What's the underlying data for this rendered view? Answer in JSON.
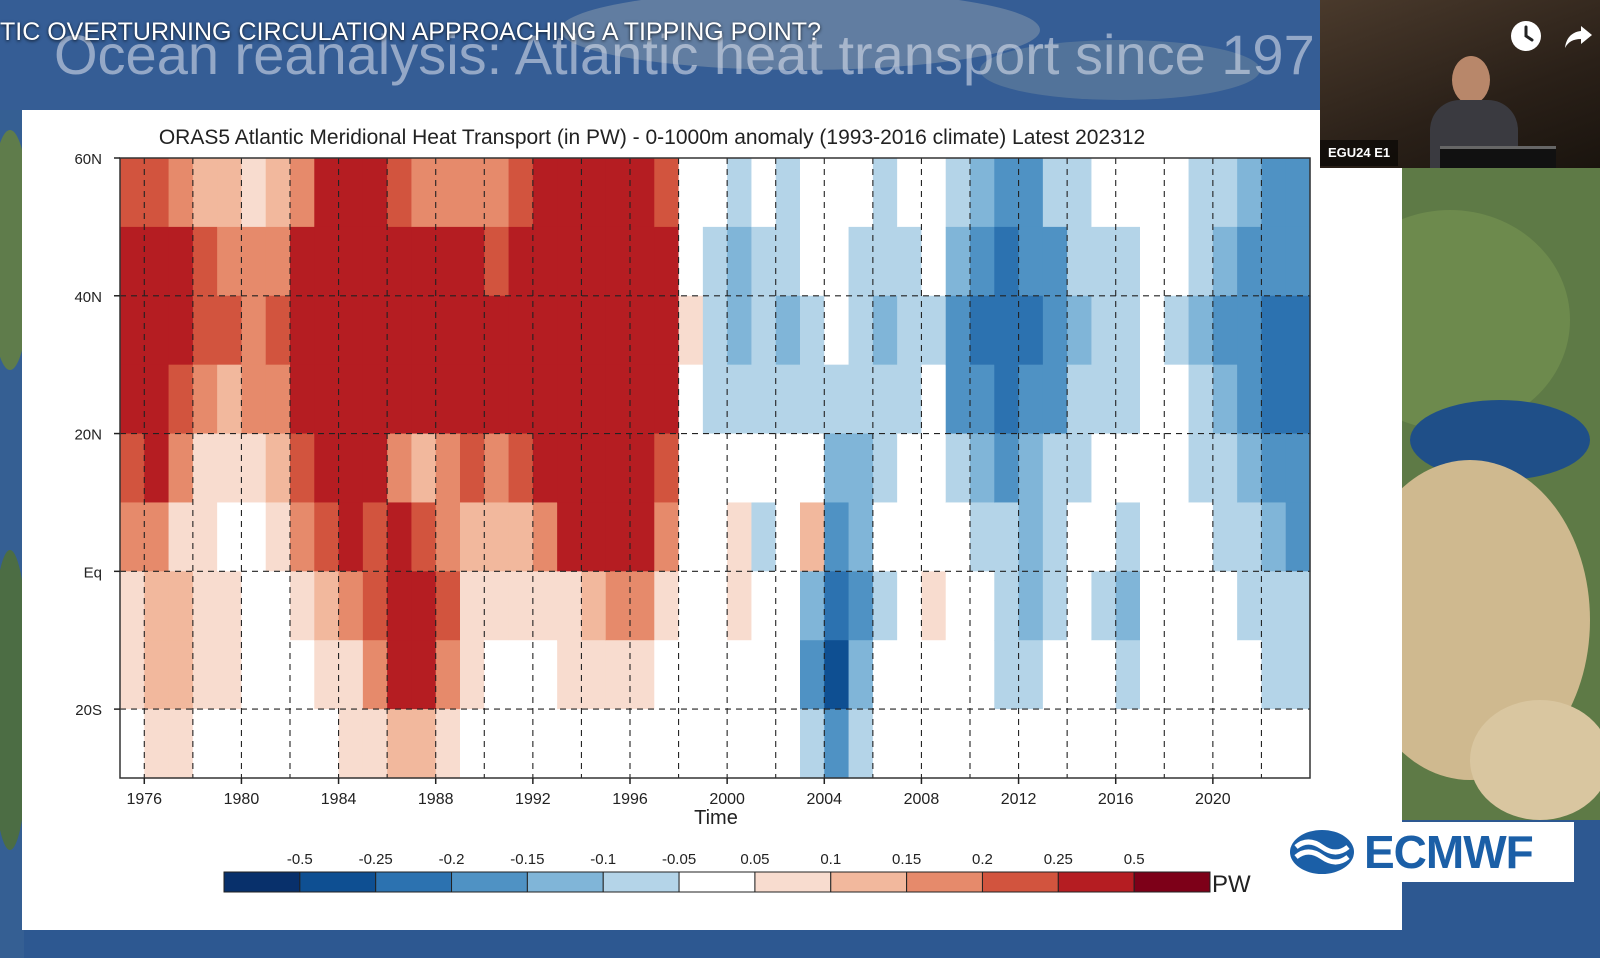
{
  "video": {
    "title": "TIC OVERTURNING CIRCULATION APPROACHING A TIPPING POINT?",
    "watch_later_icon": "clock-icon",
    "share_icon": "share-arrow-icon"
  },
  "slide": {
    "heading": "Ocean reanalysis: Atlantic heat transport since 197"
  },
  "webcam": {
    "label": "EGU24 E1"
  },
  "logo": {
    "text": "ECMWF",
    "icon": "ecmwf-wave-icon",
    "color": "#1b5fa7"
  },
  "colors": {
    "neg": [
      "#08306b",
      "#0e4f92",
      "#2c72b0",
      "#4f92c4",
      "#80b5d8",
      "#b4d4e8",
      "#dceaf3"
    ],
    "pos": [
      "#f8dccf",
      "#f2b89d",
      "#e68a6b",
      "#d2543e",
      "#b51d22",
      "#7d0018"
    ],
    "neutral": "#ffffff"
  },
  "chart_data": {
    "type": "heatmap",
    "title": "ORAS5 Atlantic Meridional Heat Transport (in PW) - 0-1000m anomaly (1993-2016 climate) Latest 202312",
    "xlabel": "Time",
    "ylabel": "",
    "xlim": [
      1975,
      2024
    ],
    "ylim": [
      -30,
      60
    ],
    "x_ticks": [
      1976,
      1980,
      1984,
      1988,
      1992,
      1996,
      2000,
      2004,
      2008,
      2012,
      2016,
      2020
    ],
    "y_ticks": [
      {
        "value": 60,
        "label": "60N"
      },
      {
        "value": 40,
        "label": "40N"
      },
      {
        "value": 20,
        "label": "20N"
      },
      {
        "value": 0,
        "label": "Eq"
      },
      {
        "value": -20,
        "label": "20S"
      }
    ],
    "grid": true,
    "colorbar": {
      "unit": "PW",
      "labels": [
        "-0.5",
        "-0.25",
        "-0.2",
        "-0.15",
        "-0.1",
        "-0.05",
        "0.05",
        "0.1",
        "0.15",
        "0.2",
        "0.25",
        "0.5"
      ],
      "boundaries": [
        -0.5,
        -0.25,
        -0.2,
        -0.15,
        -0.1,
        -0.05,
        0.05,
        0.1,
        0.15,
        0.2,
        0.25,
        0.5
      ]
    },
    "lat_levels": [
      55,
      45,
      35,
      25,
      15,
      5,
      -5,
      -15,
      -25
    ],
    "year_series": [
      {
        "year": 1975,
        "values": [
          0.22,
          0.3,
          0.32,
          0.3,
          0.25,
          0.18,
          0.1,
          0.08,
          0.05
        ]
      },
      {
        "year": 1976,
        "values": [
          0.25,
          0.32,
          0.35,
          0.33,
          0.28,
          0.2,
          0.15,
          0.12,
          0.08
        ]
      },
      {
        "year": 1977,
        "values": [
          0.18,
          0.26,
          0.28,
          0.22,
          0.16,
          0.1,
          0.12,
          0.15,
          0.1
        ]
      },
      {
        "year": 1978,
        "values": [
          0.15,
          0.22,
          0.24,
          0.18,
          0.1,
          0.06,
          0.08,
          0.1,
          0.05
        ]
      },
      {
        "year": 1979,
        "values": [
          0.12,
          0.2,
          0.22,
          0.15,
          0.08,
          0.04,
          0.06,
          0.08,
          0.04
        ]
      },
      {
        "year": 1980,
        "values": [
          0.1,
          0.18,
          0.2,
          0.16,
          0.1,
          0.05,
          0.04,
          0.04,
          0.02
        ]
      },
      {
        "year": 1981,
        "values": [
          0.12,
          0.2,
          0.22,
          0.2,
          0.14,
          0.08,
          0.03,
          0.02,
          0.02
        ]
      },
      {
        "year": 1982,
        "values": [
          0.2,
          0.28,
          0.3,
          0.28,
          0.24,
          0.18,
          0.08,
          0.05,
          0.03
        ]
      },
      {
        "year": 1983,
        "values": [
          0.3,
          0.34,
          0.32,
          0.3,
          0.28,
          0.24,
          0.12,
          0.08,
          0.04
        ]
      },
      {
        "year": 1984,
        "values": [
          0.34,
          0.36,
          0.34,
          0.32,
          0.3,
          0.26,
          0.16,
          0.1,
          0.06
        ]
      },
      {
        "year": 1985,
        "values": [
          0.3,
          0.34,
          0.33,
          0.3,
          0.27,
          0.25,
          0.22,
          0.16,
          0.1
        ]
      },
      {
        "year": 1986,
        "values": [
          0.22,
          0.3,
          0.32,
          0.3,
          0.2,
          0.26,
          0.3,
          0.26,
          0.14
        ]
      },
      {
        "year": 1987,
        "values": [
          0.18,
          0.28,
          0.3,
          0.28,
          0.14,
          0.24,
          0.32,
          0.28,
          0.14
        ]
      },
      {
        "year": 1988,
        "values": [
          0.2,
          0.3,
          0.32,
          0.3,
          0.2,
          0.2,
          0.22,
          0.16,
          0.08
        ]
      },
      {
        "year": 1989,
        "values": [
          0.18,
          0.28,
          0.3,
          0.28,
          0.22,
          0.15,
          0.1,
          0.06,
          0.04
        ]
      },
      {
        "year": 1990,
        "values": [
          0.16,
          0.25,
          0.28,
          0.26,
          0.2,
          0.12,
          0.06,
          0.04,
          0.02
        ]
      },
      {
        "year": 1991,
        "values": [
          0.22,
          0.3,
          0.33,
          0.3,
          0.24,
          0.14,
          0.06,
          0.04,
          0.02
        ]
      },
      {
        "year": 1992,
        "values": [
          0.3,
          0.36,
          0.38,
          0.36,
          0.32,
          0.2,
          0.08,
          0.05,
          0.02
        ]
      },
      {
        "year": 1993,
        "values": [
          0.34,
          0.4,
          0.42,
          0.4,
          0.36,
          0.26,
          0.1,
          0.06,
          0.03
        ]
      },
      {
        "year": 1994,
        "values": [
          0.36,
          0.42,
          0.44,
          0.42,
          0.38,
          0.3,
          0.14,
          0.08,
          0.04
        ]
      },
      {
        "year": 1995,
        "values": [
          0.38,
          0.44,
          0.45,
          0.44,
          0.4,
          0.32,
          0.18,
          0.1,
          0.05
        ]
      },
      {
        "year": 1996,
        "values": [
          0.36,
          0.42,
          0.44,
          0.42,
          0.38,
          0.3,
          0.16,
          0.08,
          0.04
        ]
      },
      {
        "year": 1997,
        "values": [
          0.24,
          0.3,
          0.32,
          0.3,
          0.24,
          0.16,
          0.08,
          0.04,
          0.02
        ]
      },
      {
        "year": 1998,
        "values": [
          0.02,
          0.04,
          0.06,
          0.04,
          0.02,
          0.0,
          0.02,
          0.02,
          0.0
        ]
      },
      {
        "year": 1999,
        "values": [
          -0.04,
          -0.06,
          -0.08,
          -0.06,
          -0.02,
          0.0,
          0.02,
          0.02,
          0.0
        ]
      },
      {
        "year": 2000,
        "values": [
          -0.06,
          -0.12,
          -0.14,
          -0.1,
          0.04,
          0.08,
          0.06,
          0.02,
          0.0
        ]
      },
      {
        "year": 2001,
        "values": [
          -0.04,
          -0.06,
          -0.08,
          -0.06,
          -0.04,
          -0.1,
          -0.04,
          -0.02,
          0.0
        ]
      },
      {
        "year": 2002,
        "values": [
          -0.06,
          -0.1,
          -0.14,
          -0.1,
          -0.04,
          0.0,
          -0.02,
          -0.04,
          -0.02
        ]
      },
      {
        "year": 2003,
        "values": [
          -0.02,
          -0.04,
          -0.06,
          -0.06,
          -0.04,
          0.14,
          -0.12,
          -0.16,
          -0.08
        ]
      },
      {
        "year": 2004,
        "values": [
          0.0,
          0.04,
          -0.02,
          -0.06,
          -0.12,
          -0.16,
          -0.24,
          -0.28,
          -0.18
        ]
      },
      {
        "year": 2005,
        "values": [
          -0.04,
          -0.06,
          -0.08,
          -0.08,
          -0.12,
          -0.14,
          -0.16,
          -0.12,
          -0.06
        ]
      },
      {
        "year": 2006,
        "values": [
          -0.06,
          -0.1,
          -0.12,
          -0.1,
          -0.06,
          -0.04,
          -0.06,
          -0.04,
          -0.02
        ]
      },
      {
        "year": 2007,
        "values": [
          -0.04,
          -0.08,
          -0.1,
          -0.08,
          -0.04,
          0.0,
          0.02,
          0.02,
          0.0
        ]
      },
      {
        "year": 2008,
        "values": [
          -0.02,
          -0.04,
          -0.06,
          -0.04,
          0.0,
          0.04,
          0.06,
          0.04,
          0.02
        ]
      },
      {
        "year": 2009,
        "values": [
          -0.08,
          -0.14,
          -0.2,
          -0.18,
          -0.1,
          -0.02,
          0.02,
          0.02,
          0.0
        ]
      },
      {
        "year": 2010,
        "values": [
          -0.14,
          -0.18,
          -0.22,
          -0.2,
          -0.14,
          -0.06,
          -0.04,
          -0.02,
          0.0
        ]
      },
      {
        "year": 2011,
        "values": [
          -0.2,
          -0.22,
          -0.24,
          -0.22,
          -0.16,
          -0.1,
          -0.08,
          -0.06,
          -0.02
        ]
      },
      {
        "year": 2012,
        "values": [
          -0.16,
          -0.2,
          -0.22,
          -0.2,
          -0.14,
          -0.12,
          -0.14,
          -0.08,
          -0.02
        ]
      },
      {
        "year": 2013,
        "values": [
          -0.1,
          -0.16,
          -0.18,
          -0.16,
          -0.1,
          -0.06,
          -0.06,
          -0.04,
          0.0
        ]
      },
      {
        "year": 2014,
        "values": [
          -0.06,
          -0.1,
          -0.12,
          -0.1,
          -0.06,
          -0.02,
          -0.02,
          0.0,
          0.0
        ]
      },
      {
        "year": 2015,
        "values": [
          -0.04,
          -0.06,
          -0.08,
          -0.06,
          -0.04,
          -0.04,
          -0.1,
          -0.04,
          0.0
        ]
      },
      {
        "year": 2016,
        "values": [
          -0.04,
          -0.06,
          -0.06,
          -0.06,
          -0.04,
          -0.06,
          -0.14,
          -0.06,
          -0.02
        ]
      },
      {
        "year": 2017,
        "values": [
          -0.02,
          -0.04,
          -0.04,
          -0.04,
          -0.02,
          -0.02,
          -0.04,
          -0.02,
          0.0
        ]
      },
      {
        "year": 2018,
        "values": [
          -0.02,
          -0.04,
          -0.06,
          -0.04,
          -0.02,
          0.0,
          0.0,
          0.0,
          0.0
        ]
      },
      {
        "year": 2019,
        "values": [
          -0.08,
          -0.1,
          -0.12,
          -0.1,
          -0.06,
          -0.02,
          -0.02,
          0.0,
          0.0
        ]
      },
      {
        "year": 2020,
        "values": [
          -0.1,
          -0.14,
          -0.16,
          -0.14,
          -0.1,
          -0.06,
          -0.04,
          -0.02,
          0.0
        ]
      },
      {
        "year": 2021,
        "values": [
          -0.12,
          -0.16,
          -0.2,
          -0.18,
          -0.14,
          -0.1,
          -0.06,
          -0.04,
          -0.02
        ]
      },
      {
        "year": 2022,
        "values": [
          -0.16,
          -0.2,
          -0.22,
          -0.22,
          -0.18,
          -0.12,
          -0.08,
          -0.06,
          -0.02
        ]
      },
      {
        "year": 2023,
        "values": [
          -0.18,
          -0.2,
          -0.22,
          -0.22,
          -0.2,
          -0.16,
          -0.1,
          -0.06,
          -0.02
        ]
      }
    ]
  }
}
